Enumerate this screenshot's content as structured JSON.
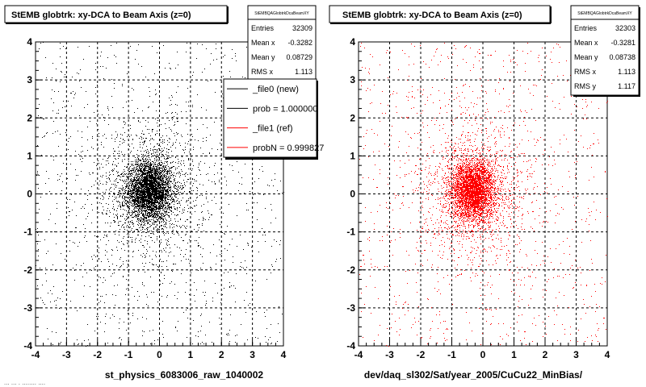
{
  "footer_text": "... ... . ........ ....",
  "chart_data": [
    {
      "type": "scatter",
      "title": "StEMB globtrk: xy-DCA to Beam Axis (z=0)",
      "xlabel": "st_physics_6083006_raw_1040002",
      "ylabel": "",
      "xlim": [
        -4,
        4
      ],
      "ylim": [
        -4,
        4
      ],
      "xticks": [
        "-4",
        "-3",
        "-2",
        "-1",
        "0",
        "1",
        "2",
        "3",
        "4"
      ],
      "yticks": [
        "-4",
        "-3",
        "-2",
        "-1",
        "0",
        "1",
        "2",
        "3",
        "4"
      ],
      "grid": true,
      "marker_color": "#000000",
      "distribution": {
        "center_x": -0.33,
        "center_y": 0.09,
        "core_rms": 0.35,
        "rms_x": 1.113,
        "rms_y": 1.11
      },
      "stats": {
        "name": "StEMBQAGlobtrkDcaBeamXY",
        "rows": [
          {
            "label": "Entries",
            "value": "32309"
          },
          {
            "label": "Mean x",
            "value": "-0.3282"
          },
          {
            "label": "Mean y",
            "value": "0.08729"
          },
          {
            "label": "RMS x",
            "value": "1.113"
          }
        ]
      },
      "legend": [
        {
          "label": "_file0 (new)",
          "color": "#000000"
        },
        {
          "label": "prob = 1.000000",
          "color": "#000000"
        },
        {
          "label": "_file1 (ref)",
          "color": "#ff0000"
        },
        {
          "label": "probN = 0.999827",
          "color": "#ff0000"
        }
      ]
    },
    {
      "type": "scatter",
      "title": "StEMB globtrk: xy-DCA to Beam Axis (z=0)",
      "xlabel": "dev/daq_sl302/Sat/year_2005/CuCu22_MinBias/",
      "ylabel": "",
      "xlim": [
        -4,
        4
      ],
      "ylim": [
        -4,
        4
      ],
      "xticks": [
        "-4",
        "-3",
        "-2",
        "-1",
        "0",
        "1",
        "2",
        "3",
        "4"
      ],
      "yticks": [
        "-4",
        "-3",
        "-2",
        "-1",
        "0",
        "1",
        "2",
        "3",
        "4"
      ],
      "grid": true,
      "marker_color": "#ff0000",
      "distribution": {
        "center_x": -0.33,
        "center_y": 0.09,
        "core_rms": 0.35,
        "rms_x": 1.113,
        "rms_y": 1.117
      },
      "stats": {
        "name": "StEMBQAGlobtrkDcaBeamXY",
        "rows": [
          {
            "label": "Entries",
            "value": "32303"
          },
          {
            "label": "Mean x",
            "value": "-0.3281"
          },
          {
            "label": "Mean y",
            "value": "0.08738"
          },
          {
            "label": "RMS x",
            "value": "1.113"
          },
          {
            "label": "RMS y",
            "value": "1.117"
          }
        ]
      }
    }
  ]
}
